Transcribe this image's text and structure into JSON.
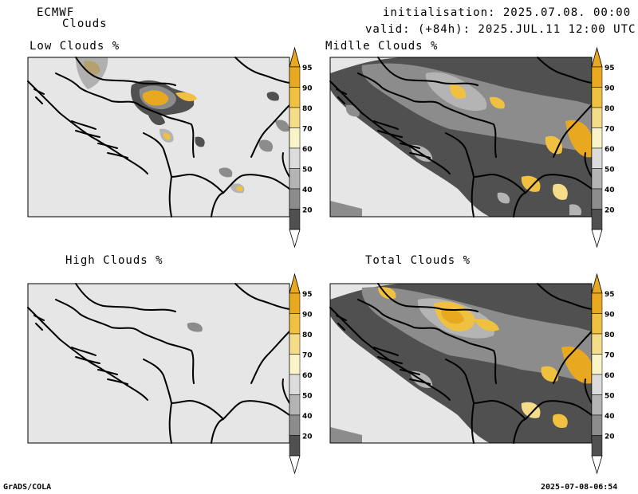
{
  "header": {
    "model": "ECMWF",
    "product": "Clouds",
    "init_line": "initialisation: 2025.07.08. 00:00 UTC",
    "valid_line": "valid: (+84h): 2025.JUL.11 12:00 UTC"
  },
  "panels": [
    {
      "id": "low",
      "title": "Low Clouds %"
    },
    {
      "id": "middle",
      "title": "Midlle Clouds %"
    },
    {
      "id": "high",
      "title": "High Clouds %"
    },
    {
      "id": "total",
      "title": "Total Clouds %"
    }
  ],
  "colorbar": {
    "levels": [
      "95",
      "90",
      "80",
      "70",
      "60",
      "50",
      "40",
      "20"
    ],
    "colors": [
      "#e8a820",
      "#f0c040",
      "#f5dc88",
      "#f8f4c8",
      "#dcdcdc",
      "#b4b4b4",
      "#8c8c8c",
      "#505050"
    ],
    "background": "#e6e6e6"
  },
  "footer": {
    "left": "GrADS/COLA",
    "right": "2025-07-08-06:54"
  }
}
